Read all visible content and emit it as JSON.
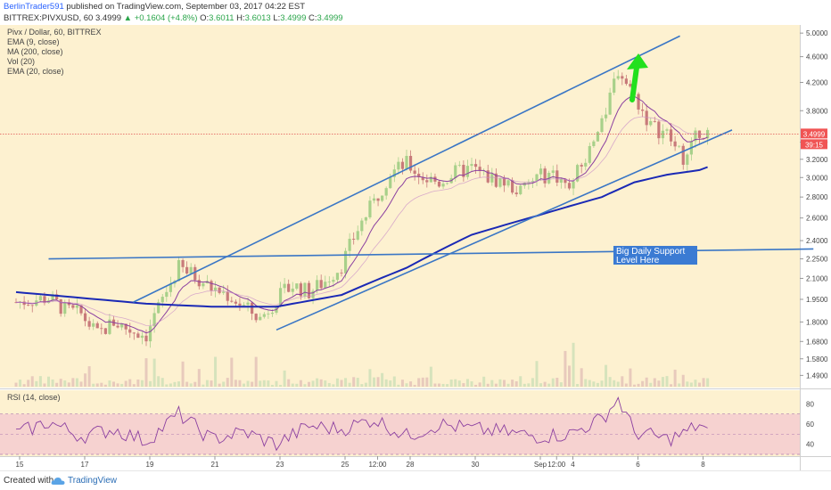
{
  "header": {
    "author": "BerlinTrader591",
    "published": "published on TradingView.com, September 03, 2017 04:22 EST",
    "symbol": "BITTREX:PIVXUSD, 60",
    "last": "3.4999",
    "arrow": "▲",
    "change": "+0.1604 (+4.8%)",
    "o_label": "O:",
    "o_value": "3.6011",
    "h_label": "H:",
    "h_value": "3.6013",
    "l_label": "L:",
    "l_value": "3.4999",
    "c_label": "C:",
    "c_value": "3.4999"
  },
  "legend": {
    "title": "Pivx / Dollar, 60, BITTREX",
    "lines": [
      "EMA (9, close)",
      "MA (200, close)",
      "Vol (20)",
      "EMA (20, close)"
    ]
  },
  "rsi_legend": "RSI (14, close)",
  "annotation": {
    "text_line1": "Big Daily Support",
    "text_line2": "Level Here"
  },
  "price_badge": "3.4999",
  "timer_badge": "39:15",
  "footer": {
    "created_with": "Created with",
    "brand": "TradingView"
  },
  "colors": {
    "background": "#fdf1d0",
    "up_candle": "#a8d08a",
    "down_candle": "#c87a7a",
    "trendline": "#3a76c5",
    "ma200": "#1a29b5",
    "ema": "#8b3fa0",
    "rsi": "#8b3fa0",
    "rsi_band": "#f6d2d0",
    "arrow": "#22e01e",
    "price_badge": "#f05454"
  },
  "chart_data": [
    {
      "type": "candlestick",
      "title": "Pivx / Dollar, 60, BITTREX",
      "ylim": [
        1.45,
        5.05
      ],
      "y_scale": "log",
      "y_ticks": [
        1.49,
        1.58,
        1.68,
        1.8,
        1.95,
        2.1,
        2.25,
        2.4,
        2.6,
        2.8,
        3.0,
        3.2,
        3.4,
        3.8,
        4.2,
        4.6,
        5.0
      ],
      "x_ticks": [
        "15",
        "17",
        "19",
        "21",
        "23",
        "25",
        "12:00",
        "28",
        "30",
        "Sep",
        "12:00",
        "4",
        "6",
        "8"
      ],
      "price_path": {
        "x_days": [
          0,
          1,
          1.5,
          2,
          2.5,
          3,
          3.5,
          4,
          4.5,
          5,
          5.5,
          6,
          6.5,
          7,
          7.5,
          8,
          8.5,
          9,
          9.5,
          10,
          10.5,
          11,
          11.5,
          12,
          12.5,
          13,
          13.5,
          14,
          14.5,
          15,
          15.5,
          16,
          16.5,
          17,
          17.5,
          18,
          18.5,
          19,
          19.5,
          20,
          20.3,
          20.6,
          21,
          21.3
        ],
        "close": [
          1.93,
          1.96,
          1.88,
          1.85,
          1.72,
          1.8,
          1.75,
          1.72,
          1.95,
          2.18,
          2.12,
          2.03,
          1.98,
          1.9,
          1.82,
          1.95,
          2.05,
          2.0,
          2.08,
          2.2,
          2.5,
          2.75,
          3.05,
          3.15,
          3.0,
          2.95,
          3.05,
          3.1,
          3.0,
          2.95,
          2.85,
          3.0,
          3.05,
          2.9,
          3.2,
          3.6,
          4.4,
          4.0,
          3.6,
          3.5,
          3.3,
          3.2,
          3.55,
          3.4999
        ]
      },
      "ma200": {
        "x_days": [
          0,
          2,
          4,
          6,
          8,
          10,
          12,
          14,
          16,
          18,
          19,
          20,
          21,
          21.3
        ],
        "y": [
          2.0,
          1.96,
          1.92,
          1.9,
          1.9,
          1.98,
          2.18,
          2.45,
          2.62,
          2.8,
          2.95,
          3.03,
          3.08,
          3.12
        ]
      },
      "trendlines": [
        {
          "x_days": [
            3.6,
            20.4
          ],
          "y": [
            1.93,
            4.95
          ]
        },
        {
          "x_days": [
            8.0,
            22.0
          ],
          "y": [
            1.75,
            3.55
          ]
        },
        {
          "x_days": [
            1.0,
            24.5
          ],
          "y": [
            2.25,
            2.33
          ]
        }
      ],
      "annotation": "Big Daily Support Level Here"
    },
    {
      "type": "line",
      "title": "RSI (14, close)",
      "ylim": [
        30,
        90
      ],
      "y_ticks": [
        40,
        60,
        80
      ],
      "bands": [
        30,
        70
      ],
      "series": [
        {
          "x_days": [
            0,
            1,
            2,
            3,
            4,
            5,
            6,
            7,
            8,
            9,
            10,
            11,
            12,
            13,
            14,
            15,
            16,
            17,
            18,
            18.5,
            19,
            20,
            20.5,
            21,
            21.3
          ],
          "values": [
            50,
            62,
            48,
            55,
            43,
            70,
            45,
            52,
            40,
            58,
            55,
            65,
            48,
            60,
            55,
            52,
            48,
            50,
            65,
            85,
            52,
            45,
            50,
            60,
            50
          ]
        }
      ]
    }
  ]
}
